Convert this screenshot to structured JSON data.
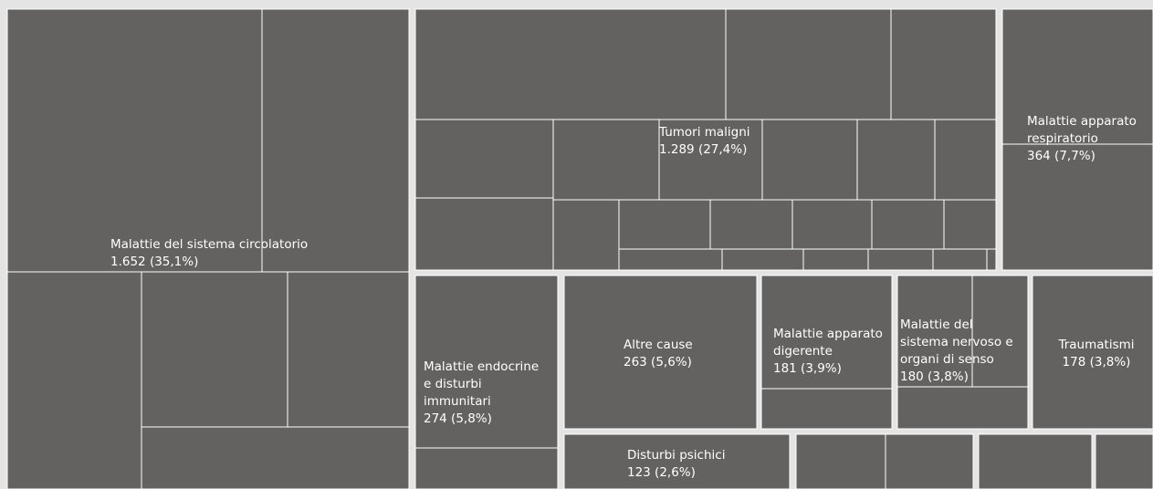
{
  "chart_data": {
    "type": "treemap",
    "colors": {
      "cell": "#636260",
      "group_gap": "#e4e4e4",
      "divider": "#ffffff",
      "text": "#ffffff"
    },
    "groups": [
      {
        "id": "circolatorio",
        "label": "Malattie del sistema circolatorio",
        "value": "1.652 (35,1%)",
        "align": "start"
      },
      {
        "id": "tumori",
        "label": "Tumori maligni",
        "value": "1.289 (27,4%)",
        "align": "start"
      },
      {
        "id": "respiratorio",
        "label": "Malattie apparato respiratorio",
        "value": "364 (7,7%)",
        "align": "start"
      },
      {
        "id": "endocrine",
        "label": "Malattie endocrine e disturbi immunitari",
        "value": "274 (5,8%)",
        "align": "start"
      },
      {
        "id": "altre",
        "label": "Altre cause",
        "value": "263 (5,6%)",
        "align": "start"
      },
      {
        "id": "digerente",
        "label": "Malattie apparato digerente",
        "value": "181 (3,9%)",
        "align": "start"
      },
      {
        "id": "nervoso",
        "label": "Malattie del sistema nervoso e organi di senso",
        "value": "180 (3,8%)",
        "align": "start"
      },
      {
        "id": "traumatismi",
        "label": "Traumatismi",
        "value": "178 (3,8%)",
        "align": "middle"
      },
      {
        "id": "psichici",
        "label": "Disturbi psichici",
        "value": "123 (2,6%)",
        "align": "start"
      }
    ]
  }
}
